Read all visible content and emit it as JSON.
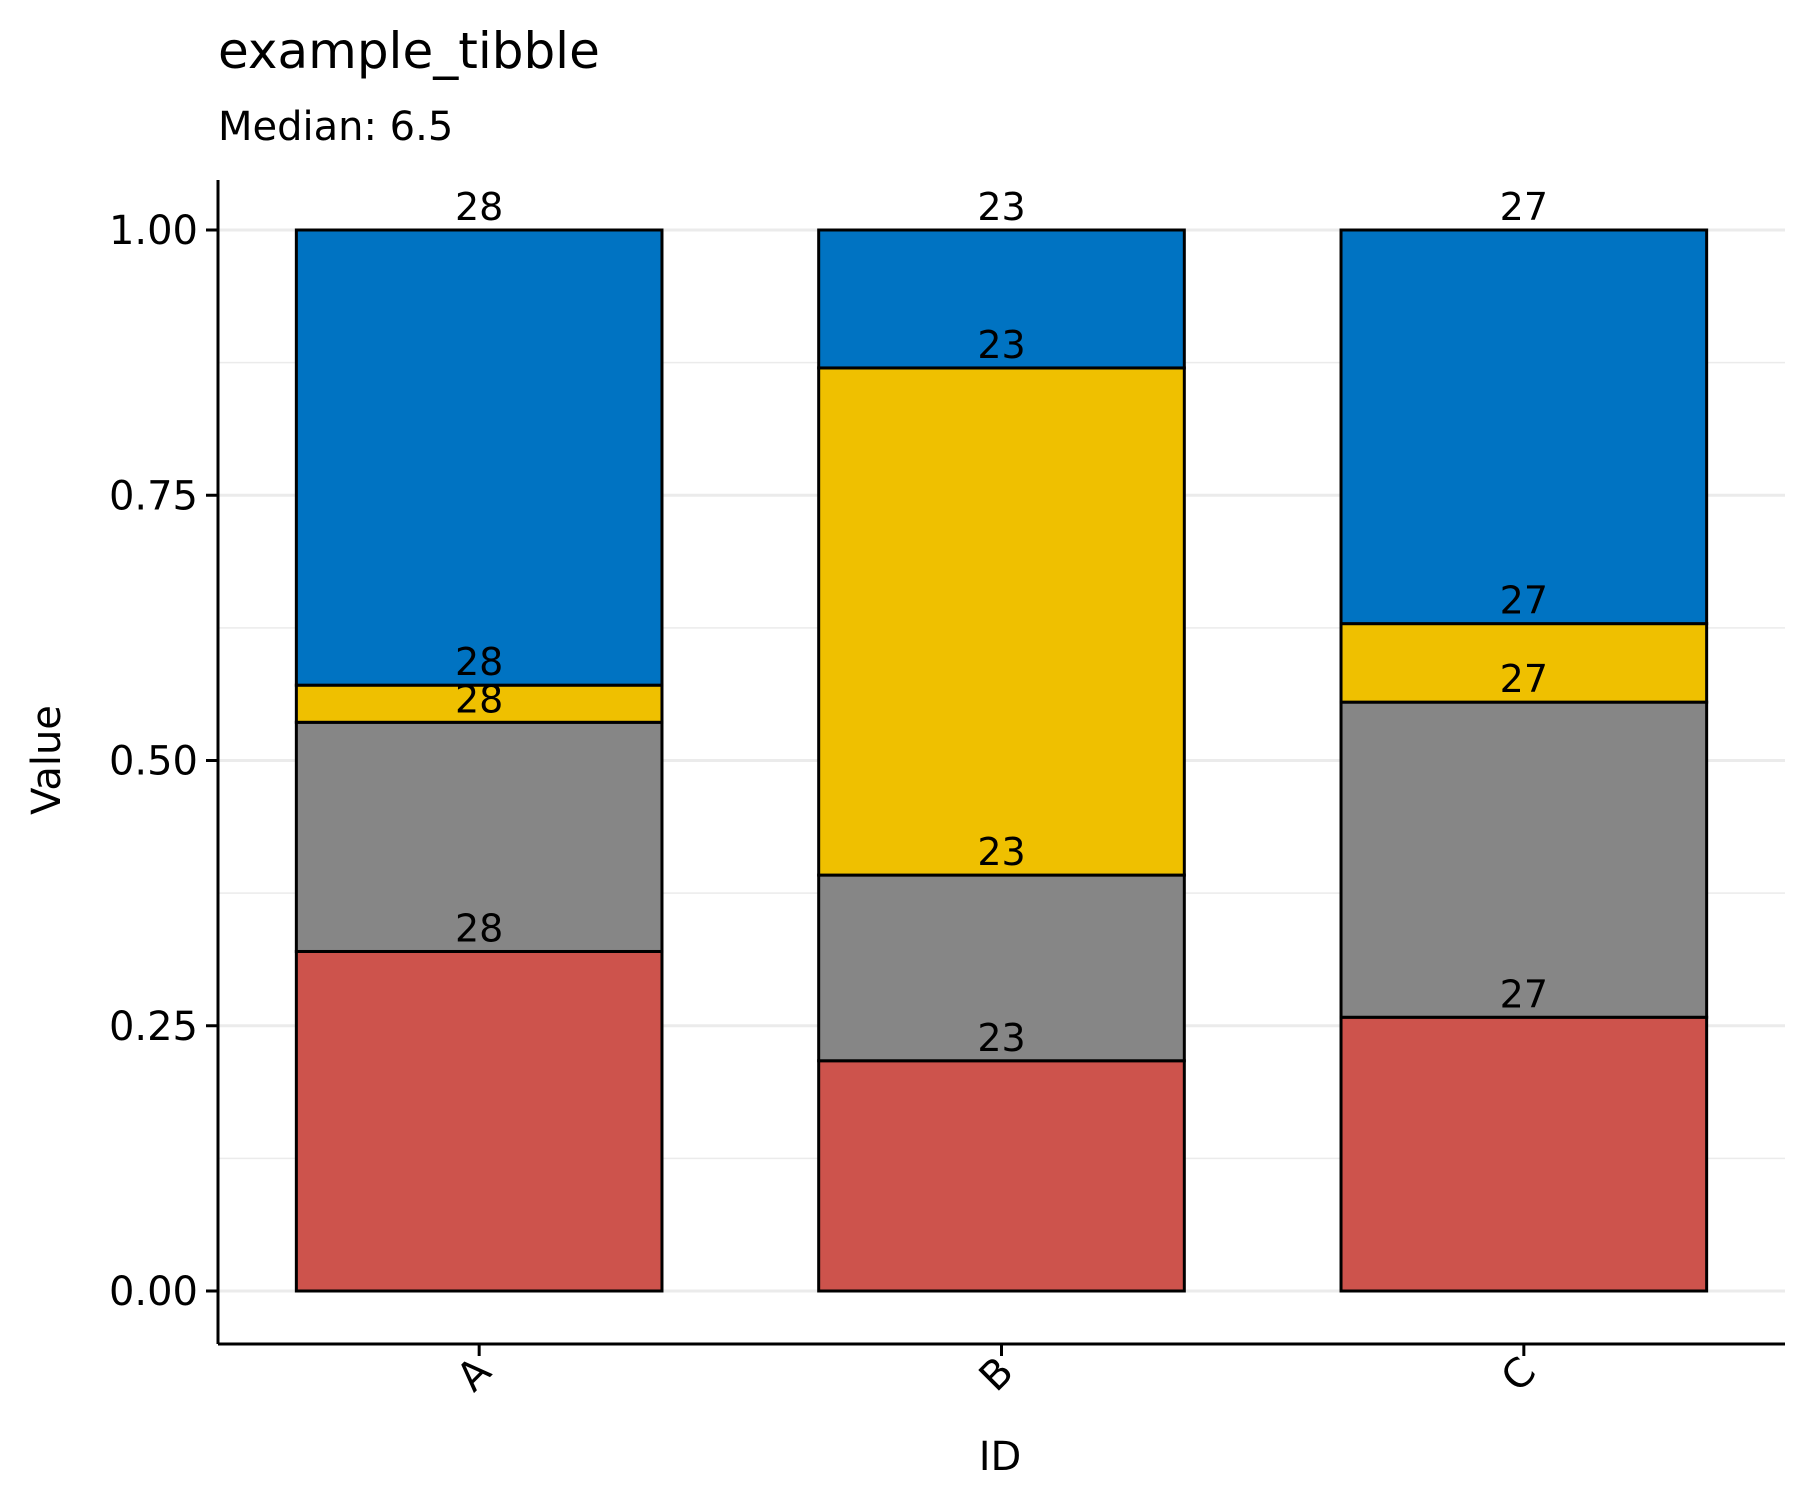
{
  "chart_data": {
    "type": "bar",
    "stacked": true,
    "title": "example_tibble",
    "subtitle": "Median: 6.5",
    "xlabel": "ID",
    "ylabel": "Value",
    "categories": [
      "A",
      "B",
      "C"
    ],
    "ylim": [
      0,
      1
    ],
    "yticks": [
      "0.00",
      "0.25",
      "0.50",
      "0.75",
      "1.00"
    ],
    "ytick_values": [
      0,
      0.25,
      0.5,
      0.75,
      1.0
    ],
    "grid": true,
    "legend": "none",
    "series": [
      {
        "color": "#CD534C",
        "values": [
          0.32,
          0.217,
          0.258
        ]
      },
      {
        "color": "#868686",
        "values": [
          0.216,
          0.175,
          0.297
        ]
      },
      {
        "color": "#EFC000",
        "values": [
          0.035,
          0.478,
          0.074
        ]
      },
      {
        "color": "#0073C2",
        "values": [
          0.429,
          0.13,
          0.371
        ]
      }
    ],
    "data_labels": [
      [
        "28",
        "28",
        "28",
        "28"
      ],
      [
        "23",
        "23",
        "23",
        "23"
      ],
      [
        "27",
        "27",
        "27",
        "27"
      ]
    ]
  }
}
